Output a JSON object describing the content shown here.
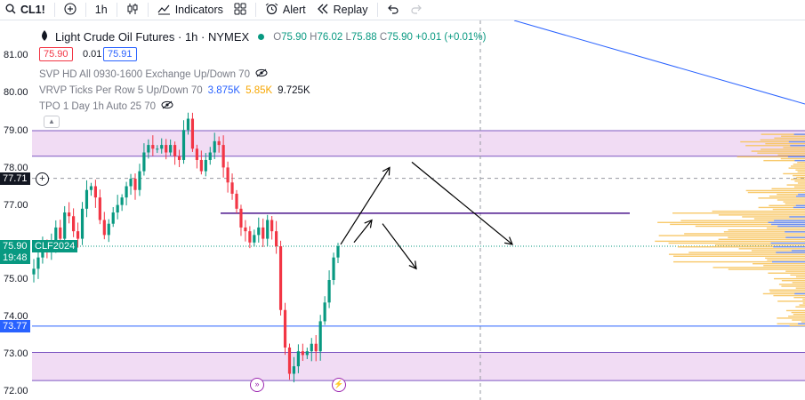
{
  "toolbar": {
    "symbol": "CL1!",
    "interval": "1h",
    "indicators_label": "Indicators",
    "alert_label": "Alert",
    "replay_label": "Replay"
  },
  "legend": {
    "title": "Light Crude Oil Futures · 1h · NYMEX",
    "open_label": "O",
    "open": "75.90",
    "high_label": "H",
    "high": "76.02",
    "low_label": "L",
    "low": "75.88",
    "close_label": "C",
    "close": "75.90",
    "change": "+0.01 (+0.01%)",
    "bid": "75.90",
    "spread": "0.01",
    "ask": "75.91",
    "svp": "SVP HD All 0930-1600 Exchange Up/Down 70",
    "vrvp": "VRVP Ticks Per Row 5 Up/Down 70",
    "vrvp_up": "3.875K",
    "vrvp_down": "5.85K",
    "vrvp_total": "9.725K",
    "tpo": "TPO 1 Day 1h Auto 25 70"
  },
  "price_axis": {
    "ticks": [
      "81.00",
      "80.00",
      "79.00",
      "78.00",
      "77.00",
      "75.00",
      "74.00",
      "73.00",
      "72.00"
    ],
    "crosshair_price": "77.71",
    "last_price": "75.90",
    "last_symbol": "CLF2024",
    "countdown": "19:48",
    "level_price": "73.77"
  },
  "colors": {
    "up": "#089981",
    "down": "#f23645",
    "zone_fill": "#f1dcf4",
    "zone_line": "#7e57c2",
    "blue_line": "#2962ff",
    "vp_up": "#f7c35b",
    "vp_down": "#5b86ff"
  },
  "chart_data": {
    "type": "candlestick",
    "instrument": "CL1!",
    "timeframe": "1h",
    "y_range": [
      72.0,
      81.4
    ],
    "last_price": 75.9,
    "crosshair_price": 77.71,
    "supply_zone": [
      78.3,
      78.98
    ],
    "demand_zone": [
      72.32,
      73.07
    ],
    "resistance_line": 76.78,
    "support_line": 73.77,
    "close_path": [
      75.3,
      75.6,
      75.9,
      75.8,
      76.0,
      76.4,
      76.1,
      76.8,
      76.7,
      76.3,
      76.1,
      76.9,
      77.4,
      77.5,
      77.2,
      76.6,
      76.2,
      76.5,
      76.8,
      77.0,
      77.2,
      77.5,
      77.7,
      77.4,
      77.9,
      78.4,
      78.6,
      78.5,
      78.5,
      78.6,
      78.4,
      78.6,
      78.3,
      78.2,
      79.0,
      79.3,
      78.5,
      78.2,
      77.9,
      78.2,
      78.4,
      78.7,
      78.6,
      78.0,
      77.6,
      77.3,
      76.9,
      76.4,
      76.3,
      76.0,
      76.2,
      76.4,
      76.1,
      76.6,
      76.3,
      75.9,
      74.2,
      73.2,
      72.5,
      72.7,
      73.1,
      73.0,
      73.1,
      73.3,
      73.1,
      73.9,
      74.4,
      75.0,
      75.6,
      75.9
    ],
    "arrows": [
      {
        "from": 75.95,
        "to": 78.0
      },
      {
        "from": 76.0,
        "to": 76.55
      },
      {
        "from": 76.55,
        "to": 75.3
      },
      {
        "from": 78.0,
        "to": 75.95
      }
    ]
  }
}
